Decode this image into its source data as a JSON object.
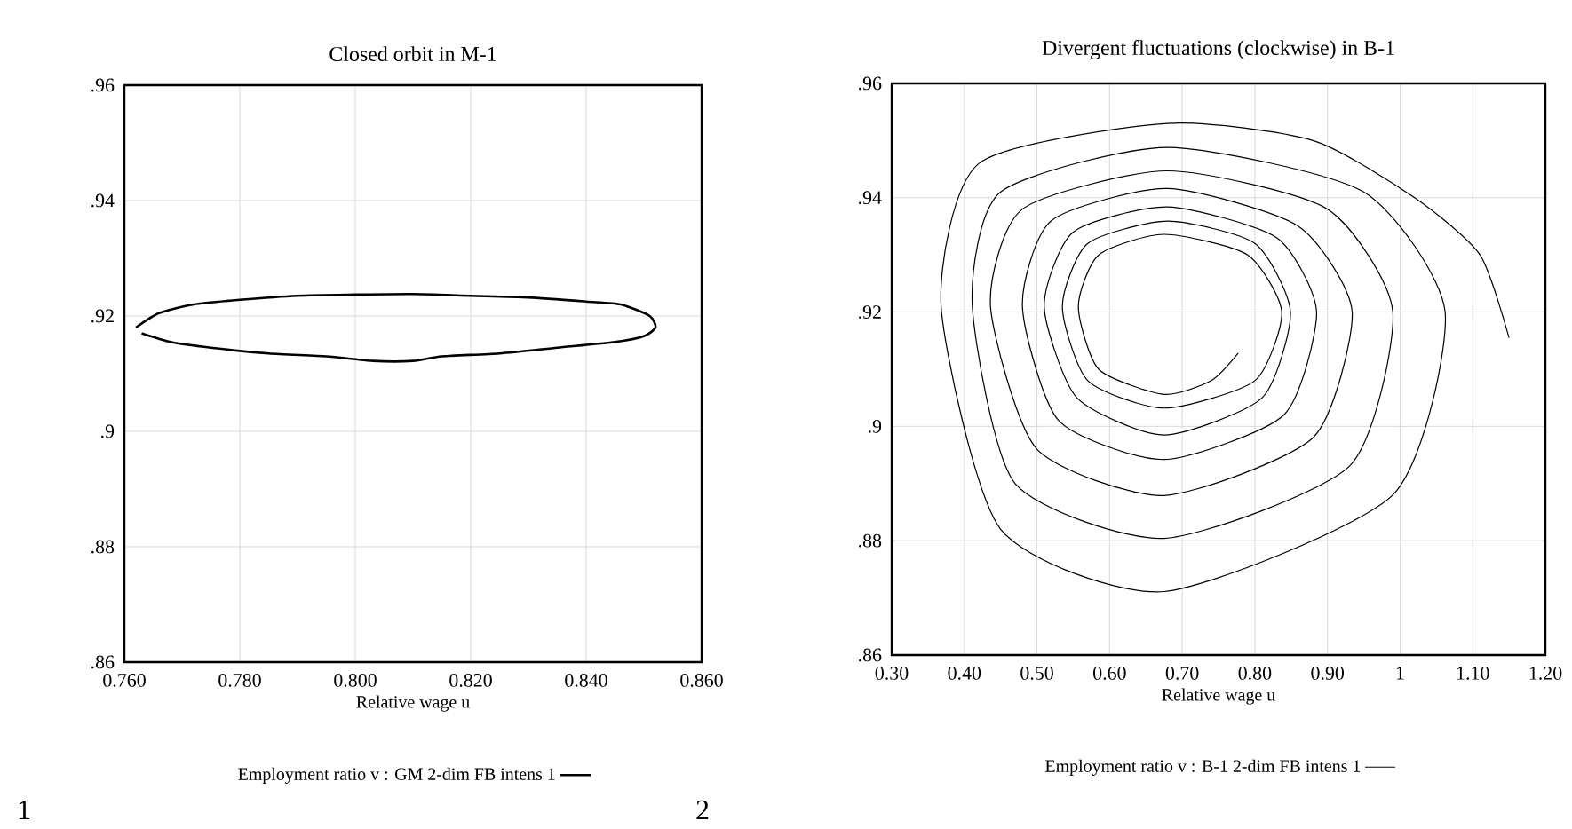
{
  "chart_data": [
    {
      "type": "line",
      "title": "Closed orbit in M-1",
      "xlabel": "Relative wage u",
      "xlim": [
        0.76,
        0.86
      ],
      "ylim": [
        0.86,
        0.96
      ],
      "xticks": [
        {
          "value": 0.76,
          "label": "0.760"
        },
        {
          "value": 0.78,
          "label": "0.780"
        },
        {
          "value": 0.8,
          "label": "0.800"
        },
        {
          "value": 0.82,
          "label": "0.820"
        },
        {
          "value": 0.84,
          "label": "0.840"
        },
        {
          "value": 0.86,
          "label": "0.860"
        }
      ],
      "yticks": [
        {
          "value": 0.86,
          "label": ".86"
        },
        {
          "value": 0.88,
          "label": ".88"
        },
        {
          "value": 0.9,
          "label": ".9"
        },
        {
          "value": 0.92,
          "label": ".92"
        },
        {
          "value": 0.94,
          "label": ".94"
        },
        {
          "value": 0.96,
          "label": ".96"
        }
      ],
      "grid": true,
      "legend": "bottom",
      "annotations": [
        "1"
      ],
      "series": [
        {
          "name": "Employment ratio v : GM 2-dim FB intens 1",
          "color": "#000000",
          "x": [
            0.762,
            0.766,
            0.772,
            0.78,
            0.79,
            0.8,
            0.81,
            0.82,
            0.83,
            0.84,
            0.846,
            0.851,
            0.852,
            0.85,
            0.845,
            0.835,
            0.825,
            0.815,
            0.81,
            0.803,
            0.795,
            0.785,
            0.775,
            0.768,
            0.763
          ],
          "values": [
            0.918,
            0.9205,
            0.922,
            0.9228,
            0.9235,
            0.9237,
            0.9238,
            0.9235,
            0.9232,
            0.9225,
            0.922,
            0.92,
            0.918,
            0.9165,
            0.9155,
            0.9145,
            0.9135,
            0.913,
            0.9122,
            0.9122,
            0.913,
            0.9135,
            0.9145,
            0.9155,
            0.917
          ]
        }
      ]
    },
    {
      "type": "line",
      "title": "Divergent fluctuations (clockwise) in B-1",
      "xlabel": "Relative wage u",
      "xlim": [
        0.3,
        1.2
      ],
      "ylim": [
        0.86,
        0.96
      ],
      "xticks": [
        {
          "value": 0.3,
          "label": "0.30"
        },
        {
          "value": 0.4,
          "label": "0.40"
        },
        {
          "value": 0.5,
          "label": "0.50"
        },
        {
          "value": 0.6,
          "label": "0.60"
        },
        {
          "value": 0.7,
          "label": "0.70"
        },
        {
          "value": 0.8,
          "label": "0.80"
        },
        {
          "value": 0.9,
          "label": "0.90"
        },
        1,
        {
          "value": 1.1,
          "label": "1.10"
        },
        {
          "value": 1.2,
          "label": "1.20"
        }
      ],
      "yticks": [
        {
          "value": 0.86,
          "label": ".86"
        },
        {
          "value": 0.88,
          "label": ".88"
        },
        {
          "value": 0.9,
          "label": ".9"
        },
        {
          "value": 0.92,
          "label": ".92"
        },
        {
          "value": 0.94,
          "label": ".94"
        },
        {
          "value": 0.96,
          "label": ".96"
        }
      ],
      "grid": true,
      "legend": "bottom",
      "annotations": [
        "2"
      ],
      "series": [
        {
          "name": "Employment ratio v : B-1 2-dim FB intens 1",
          "color": "#000000",
          "x": [
            0.777,
            0.74,
            0.675,
            0.585,
            0.557,
            0.585,
            0.675,
            0.79,
            0.837,
            0.8,
            0.675,
            0.57,
            0.535,
            0.57,
            0.68,
            0.8,
            0.849,
            0.81,
            0.675,
            0.555,
            0.51,
            0.55,
            0.68,
            0.83,
            0.885,
            0.84,
            0.675,
            0.53,
            0.48,
            0.52,
            0.68,
            0.86,
            0.934,
            0.88,
            0.675,
            0.5,
            0.436,
            0.48,
            0.68,
            0.9,
            0.99,
            0.93,
            0.675,
            0.47,
            0.411,
            0.45,
            0.68,
            0.95,
            1.062,
            0.99,
            0.675,
            0.45,
            0.368,
            0.42,
            0.68,
            0.88,
            1.02,
            1.11,
            1.15
          ],
          "values": [
            0.9128,
            0.908,
            0.9056,
            0.91,
            0.921,
            0.93,
            0.9336,
            0.93,
            0.92,
            0.908,
            0.9032,
            0.908,
            0.921,
            0.932,
            0.9359,
            0.932,
            0.92,
            0.905,
            0.8985,
            0.905,
            0.921,
            0.934,
            0.9384,
            0.933,
            0.92,
            0.902,
            0.8942,
            0.901,
            0.921,
            0.936,
            0.9416,
            0.935,
            0.92,
            0.898,
            0.8879,
            0.896,
            0.921,
            0.938,
            0.9447,
            0.938,
            0.92,
            0.893,
            0.8804,
            0.89,
            0.921,
            0.941,
            0.9488,
            0.941,
            0.92,
            0.888,
            0.8711,
            0.882,
            0.921,
            0.946,
            0.953,
            0.95,
            0.94,
            0.93,
            0.9155
          ]
        }
      ]
    }
  ]
}
